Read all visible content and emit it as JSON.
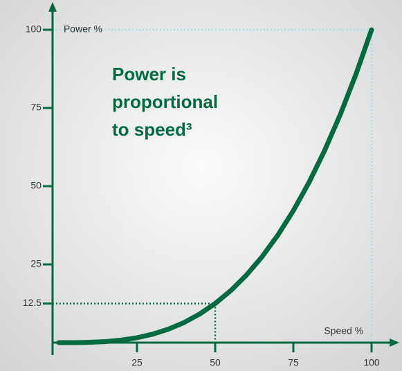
{
  "chart_data": {
    "type": "line",
    "title_lines": [
      "Power is",
      "proportional",
      "to speed³"
    ],
    "y_label": "Power %",
    "x_label": "Speed %",
    "x": [
      0,
      5,
      10,
      15,
      20,
      25,
      30,
      35,
      40,
      45,
      50,
      55,
      60,
      65,
      70,
      75,
      80,
      85,
      90,
      95,
      100
    ],
    "series": [
      {
        "color": "#006b3f",
        "values": [
          0,
          0.0125,
          0.1,
          0.3375,
          0.8,
          1.5625,
          2.7,
          4.2875,
          6.4,
          9.1125,
          12.5,
          16.6375,
          21.6,
          27.4625,
          34.3,
          42.1875,
          51.2,
          61.4125,
          72.9,
          85.7375,
          100
        ]
      }
    ],
    "guides": [
      {
        "x": 50,
        "y": 12.5,
        "color": "#006b3f"
      },
      {
        "x": 100,
        "y": 100,
        "color": "#a9dbe6"
      }
    ],
    "xlim": [
      -2,
      108
    ],
    "ylim": [
      0,
      108
    ],
    "xticks": [
      25,
      50,
      75,
      100
    ],
    "yticks": [
      12.5,
      25,
      50,
      75,
      100
    ],
    "axis_color": "#006b3f"
  }
}
